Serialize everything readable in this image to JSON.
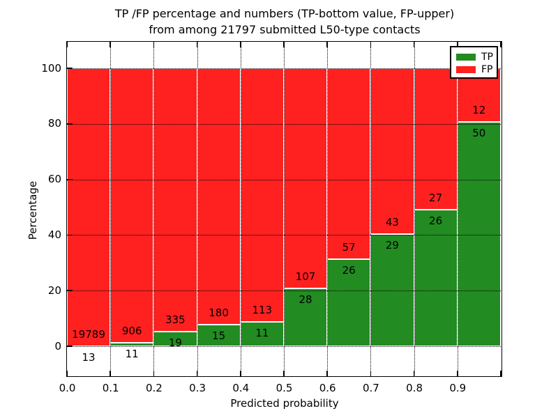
{
  "title": {
    "line1": "TP /FP percentage and numbers (TP-bottom value, FP-upper)",
    "line2": "from among 21797 submitted L50-type contacts"
  },
  "chart_data": {
    "type": "bar",
    "stacked": true,
    "normalization": "each bin scaled to 100% (TP+FP)",
    "title": "TP /FP percentage and numbers (TP-bottom value, FP-upper) from among 21797 submitted L50-type contacts",
    "xlabel": "Predicted probability",
    "ylabel": "Percentage",
    "xlim": [
      0.0,
      1.0
    ],
    "ylim_percent": [
      -10.5,
      109.5
    ],
    "x_tick_labels": [
      "0.0",
      "0.1",
      "0.2",
      "0.3",
      "0.4",
      "0.5",
      "0.6",
      "0.7",
      "0.8",
      "0.9"
    ],
    "y_ticks": [
      0,
      20,
      40,
      60,
      80,
      100
    ],
    "y_tick_labels": [
      "0",
      "20",
      "40",
      "60",
      "80",
      "100"
    ],
    "grid": "dotted black lines at every x tick and y tick",
    "bin_width": 0.1,
    "bin_starts": [
      0.0,
      0.1,
      0.2,
      0.3,
      0.4,
      0.5,
      0.6,
      0.7,
      0.8,
      0.9
    ],
    "series": [
      {
        "name": "TP",
        "color": "#228b22",
        "counts": [
          13,
          11,
          19,
          15,
          11,
          28,
          26,
          29,
          26,
          50
        ]
      },
      {
        "name": "FP",
        "color": "#ff2020",
        "counts": [
          19789,
          906,
          335,
          180,
          113,
          107,
          57,
          43,
          27,
          12
        ]
      }
    ],
    "tp_percent_of_bin": [
      0.066,
      1.2,
      5.367,
      7.692,
      8.871,
      20.741,
      31.325,
      40.278,
      49.057,
      80.645
    ],
    "total_contacts": 21797,
    "legend": {
      "position": "upper right",
      "entries": [
        {
          "label": "TP",
          "color": "#228b22"
        },
        {
          "label": "FP",
          "color": "#ff2020"
        }
      ]
    }
  }
}
